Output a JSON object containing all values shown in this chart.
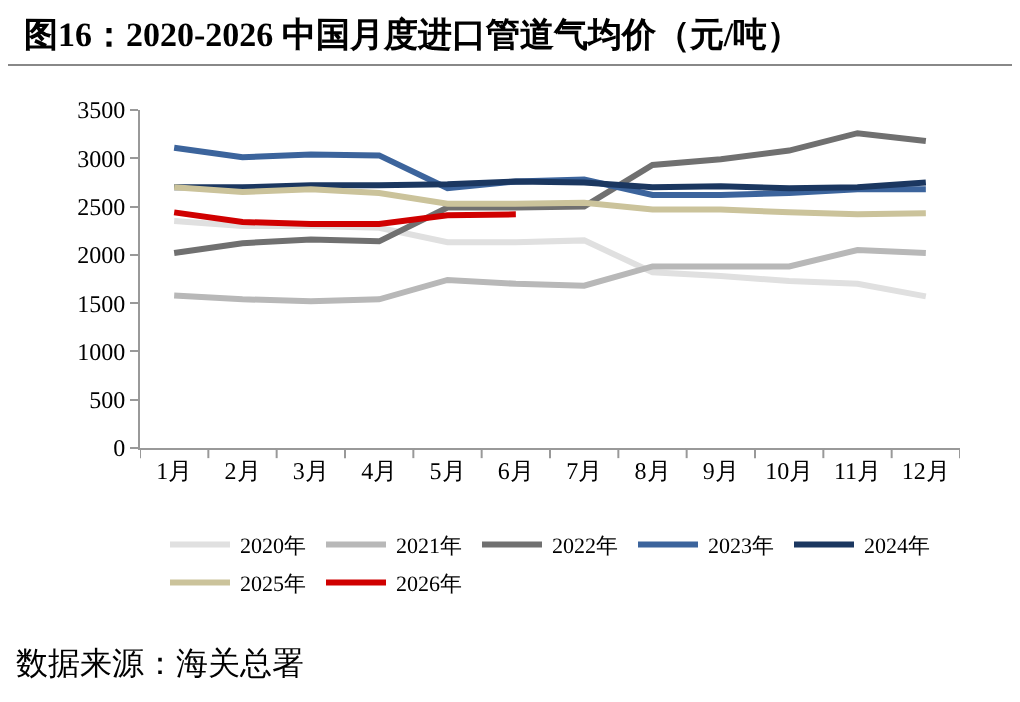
{
  "chart_data": {
    "type": "line",
    "title": "图16：2020-2026 中国月度进口管道气均价（元/吨）",
    "categories": [
      "1月",
      "2月",
      "3月",
      "4月",
      "5月",
      "6月",
      "7月",
      "8月",
      "9月",
      "10月",
      "11月",
      "12月"
    ],
    "series": [
      {
        "name": "2020年",
        "color": "#e0e0e0",
        "values": [
          2350,
          2300,
          2300,
          2280,
          2130,
          2130,
          2150,
          1820,
          1780,
          1730,
          1700,
          1570
        ]
      },
      {
        "name": "2021年",
        "color": "#b8b8b8",
        "values": [
          1580,
          1540,
          1520,
          1540,
          1740,
          1700,
          1680,
          1880,
          1880,
          1880,
          2050,
          2020
        ]
      },
      {
        "name": "2022年",
        "color": "#707070",
        "values": [
          2020,
          2120,
          2160,
          2140,
          2490,
          2490,
          2500,
          2930,
          2990,
          3080,
          3260,
          3180
        ]
      },
      {
        "name": "2023年",
        "color": "#3c649c",
        "values": [
          3110,
          3010,
          3040,
          3030,
          2690,
          2760,
          2780,
          2620,
          2620,
          2640,
          2680,
          2680
        ]
      },
      {
        "name": "2024年",
        "color": "#1b3760",
        "values": [
          2700,
          2700,
          2720,
          2720,
          2730,
          2760,
          2750,
          2700,
          2710,
          2690,
          2700,
          2750
        ]
      },
      {
        "name": "2025年",
        "color": "#cbc39b",
        "values": [
          2700,
          2650,
          2680,
          2640,
          2530,
          2530,
          2540,
          2470,
          2470,
          2440,
          2420,
          2430
        ]
      },
      {
        "name": "2026年",
        "color": "#d00000",
        "values": [
          2440,
          2340,
          2320,
          2320,
          2410,
          2420,
          null,
          null,
          null,
          null,
          null,
          null
        ]
      }
    ],
    "ylim": [
      0,
      3500
    ],
    "yticks": [
      0,
      500,
      1000,
      1500,
      2000,
      2500,
      3000,
      3500
    ],
    "grid": false,
    "legend": "bottom",
    "marker": "none",
    "line_style": "solid",
    "annotations": [
      "数据来源：海关总署"
    ]
  }
}
